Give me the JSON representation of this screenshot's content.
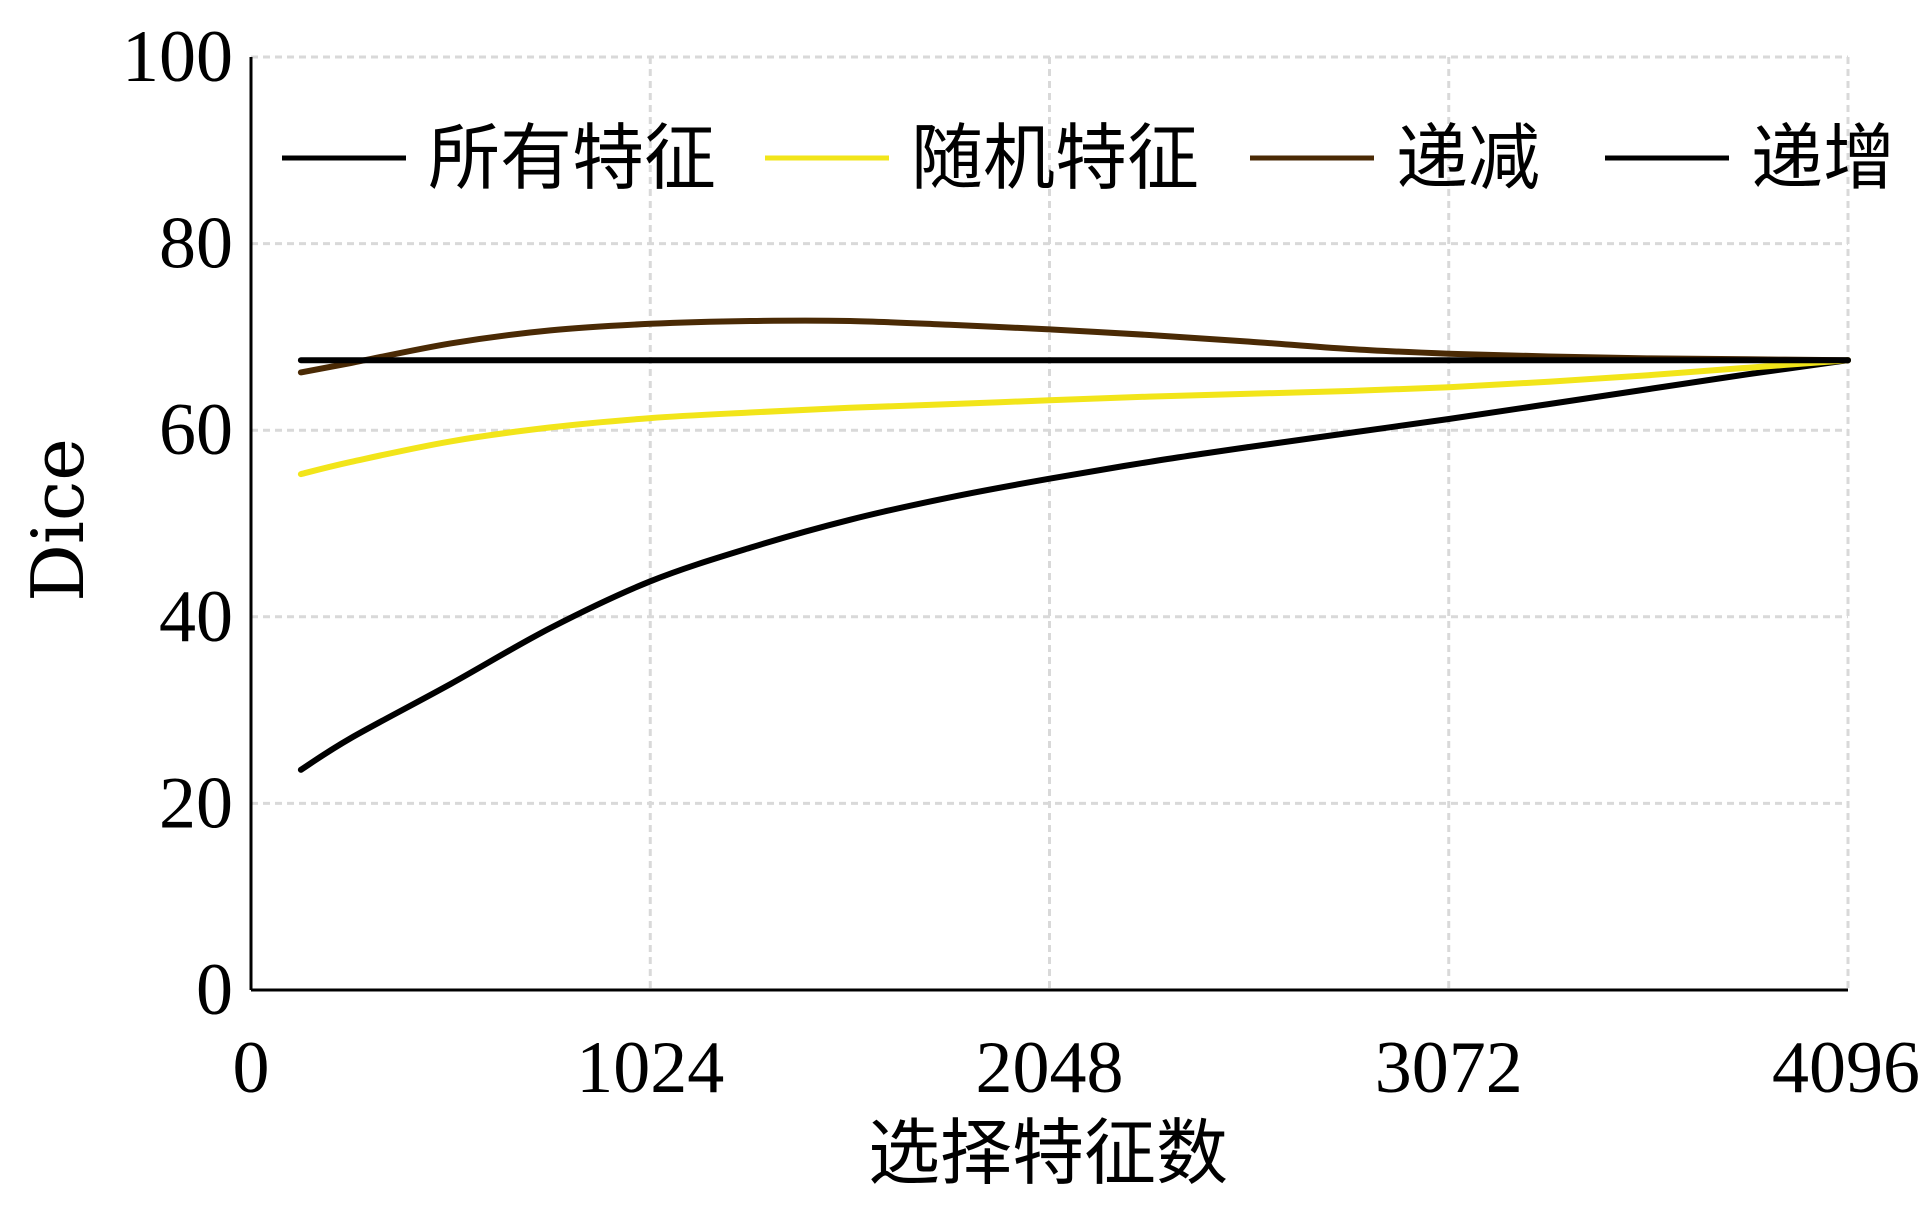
{
  "chart_data": {
    "type": "line",
    "title": "",
    "xlabel": "选择特征数",
    "ylabel": "Dice",
    "xlim": [
      0,
      4096
    ],
    "ylim": [
      0,
      100
    ],
    "xticks": [
      0,
      1024,
      2048,
      3072,
      4096
    ],
    "yticks": [
      0,
      20,
      40,
      60,
      80,
      100
    ],
    "grid": true,
    "legend_position": "top",
    "x": [
      128,
      256,
      512,
      768,
      1024,
      1280,
      1536,
      1792,
      2048,
      2304,
      2560,
      2816,
      3072,
      3328,
      3584,
      3840,
      4096
    ],
    "series": [
      {
        "name": "所有特征",
        "color": "#000000",
        "values": [
          67.5,
          67.5,
          67.5,
          67.5,
          67.5,
          67.5,
          67.5,
          67.5,
          67.5,
          67.5,
          67.5,
          67.5,
          67.5,
          67.5,
          67.5,
          67.5,
          67.5
        ]
      },
      {
        "name": "随机特征",
        "color": "#f2e51a",
        "values": [
          55.3,
          56.6,
          58.8,
          60.3,
          61.3,
          61.9,
          62.4,
          62.8,
          63.2,
          63.6,
          63.9,
          64.2,
          64.6,
          65.2,
          65.9,
          66.7,
          67.5
        ]
      },
      {
        "name": "递减",
        "color": "#4a2a05",
        "values": [
          66.2,
          67.2,
          69.3,
          70.7,
          71.4,
          71.7,
          71.7,
          71.3,
          70.8,
          70.2,
          69.5,
          68.7,
          68.2,
          67.9,
          67.7,
          67.6,
          67.5
        ]
      },
      {
        "name": "递增",
        "color": "#000000",
        "values": [
          23.6,
          27.0,
          32.8,
          38.8,
          43.8,
          47.4,
          50.4,
          52.8,
          54.8,
          56.6,
          58.2,
          59.7,
          61.2,
          62.8,
          64.4,
          66.0,
          67.5
        ]
      }
    ]
  }
}
